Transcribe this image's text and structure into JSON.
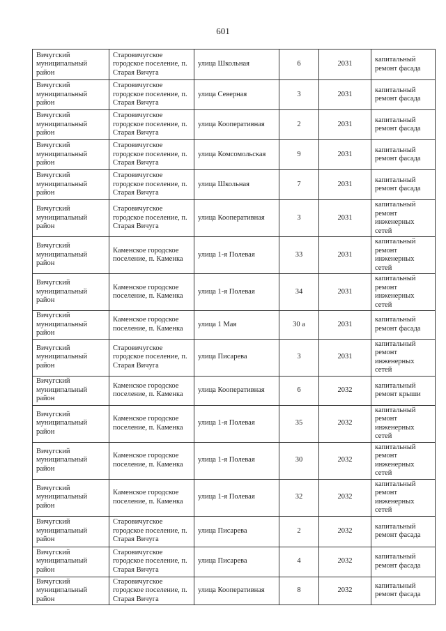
{
  "page_number": "601",
  "rows": [
    {
      "district": "Вичугский муниципальный район",
      "settlement": "Старовичугское городское поселение, п. Старая Вичуга",
      "street": "улица Школьная",
      "house": "6",
      "year": "2031",
      "work": "капитальный ремонт фасада"
    },
    {
      "district": "Вичугский муниципальный район",
      "settlement": "Старовичугское городское поселение, п. Старая Вичуга",
      "street": "улица  Северная",
      "house": "3",
      "year": "2031",
      "work": "капитальный ремонт фасада"
    },
    {
      "district": "Вичугский муниципальный район",
      "settlement": "Старовичугское городское поселение, п. Старая Вичуга",
      "street": "улица Кооперативная",
      "house": "2",
      "year": "2031",
      "work": "капитальный ремонт фасада"
    },
    {
      "district": "Вичугский муниципальный район",
      "settlement": "Старовичугское городское поселение, п. Старая Вичуга",
      "street": "улица  Комсомольская",
      "house": "9",
      "year": "2031",
      "work": "капитальный ремонт фасада"
    },
    {
      "district": "Вичугский муниципальный район",
      "settlement": "Старовичугское городское поселение, п. Старая Вичуга",
      "street": "улица Школьная",
      "house": "7",
      "year": "2031",
      "work": "капитальный ремонт фасада"
    },
    {
      "district": "Вичугский муниципальный район",
      "settlement": "Старовичугское городское поселение, п. Старая Вичуга",
      "street": "улица Кооперативная",
      "house": "3",
      "year": "2031",
      "work": "капитальный ремонт инженерных сетей"
    },
    {
      "district": "Вичугский муниципальный район",
      "settlement": "Каменское городское поселение, п. Каменка",
      "street": "улица 1-я Полевая",
      "house": "33",
      "year": "2031",
      "work": "капитальный ремонт инженерных сетей"
    },
    {
      "district": "Вичугский муниципальный район",
      "settlement": "Каменское городское поселение, п. Каменка",
      "street": "улица 1-я Полевая",
      "house": "34",
      "year": "2031",
      "work": "капитальный ремонт инженерных сетей"
    },
    {
      "district": "Вичугский муниципальный район",
      "settlement": "Каменское городское поселение, п. Каменка",
      "street": "улица 1 Мая",
      "house": "30 а",
      "year": "2031",
      "work": "капитальный ремонт фасада"
    },
    {
      "district": "Вичугский муниципальный район",
      "settlement": "Старовичугское городское поселение, п. Старая Вичуга",
      "street": "улица  Писарева",
      "house": "3",
      "year": "2031",
      "work": "капитальный ремонт инженерных сетей"
    },
    {
      "district": "Вичугский муниципальный район",
      "settlement": "Каменское городское поселение, п. Каменка",
      "street": "улица Кооперативная",
      "house": "6",
      "year": "2032",
      "work": "капитальный ремонт крыши"
    },
    {
      "district": "Вичугский муниципальный район",
      "settlement": "Каменское городское поселение, п. Каменка",
      "street": "улица 1-я Полевая",
      "house": "35",
      "year": "2032",
      "work": "капитальный ремонт инженерных сетей"
    },
    {
      "district": "Вичугский муниципальный район",
      "settlement": "Каменское городское поселение, п. Каменка",
      "street": "улица 1-я Полевая",
      "house": "30",
      "year": "2032",
      "work": "капитальный ремонт инженерных сетей"
    },
    {
      "district": "Вичугский муниципальный район",
      "settlement": "Каменское городское поселение, п. Каменка",
      "street": "улица 1-я Полевая",
      "house": "32",
      "year": "2032",
      "work": "капитальный ремонт инженерных сетей"
    },
    {
      "district": "Вичугский муниципальный район",
      "settlement": "Старовичугское городское поселение, п. Старая Вичуга",
      "street": "улица  Писарева",
      "house": "2",
      "year": "2032",
      "work": "капитальный ремонт фасада"
    },
    {
      "district": "Вичугский муниципальный район",
      "settlement": "Старовичугское городское поселение, п. Старая Вичуга",
      "street": "улица  Писарева",
      "house": "4",
      "year": "2032",
      "work": "капитальный ремонт фасада"
    },
    {
      "district": "Вичугский муниципальный район",
      "settlement": "Старовичугское городское поселение, п. Старая Вичуга",
      "street": "улица Кооперативная",
      "house": "8",
      "year": "2032",
      "work": "капитальный ремонт фасада"
    }
  ]
}
